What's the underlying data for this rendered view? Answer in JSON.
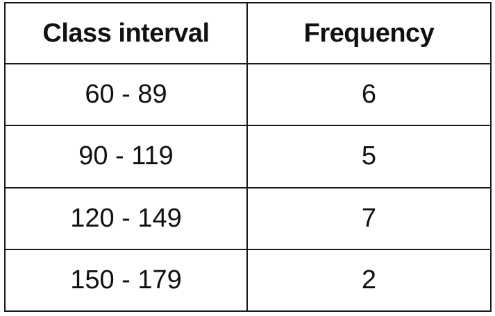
{
  "table": {
    "headers": [
      "Class interval",
      "Frequency"
    ],
    "rows": [
      [
        "60 - 89",
        "6"
      ],
      [
        "90 - 119",
        "5"
      ],
      [
        "120 - 149",
        "7"
      ],
      [
        "150 - 179",
        "2"
      ]
    ]
  },
  "chart_data": {
    "type": "table",
    "columns": [
      "Class interval",
      "Frequency"
    ],
    "categories": [
      "60 - 89",
      "90 - 119",
      "120 - 149",
      "150 - 179"
    ],
    "values": [
      6,
      5,
      7,
      2
    ]
  }
}
